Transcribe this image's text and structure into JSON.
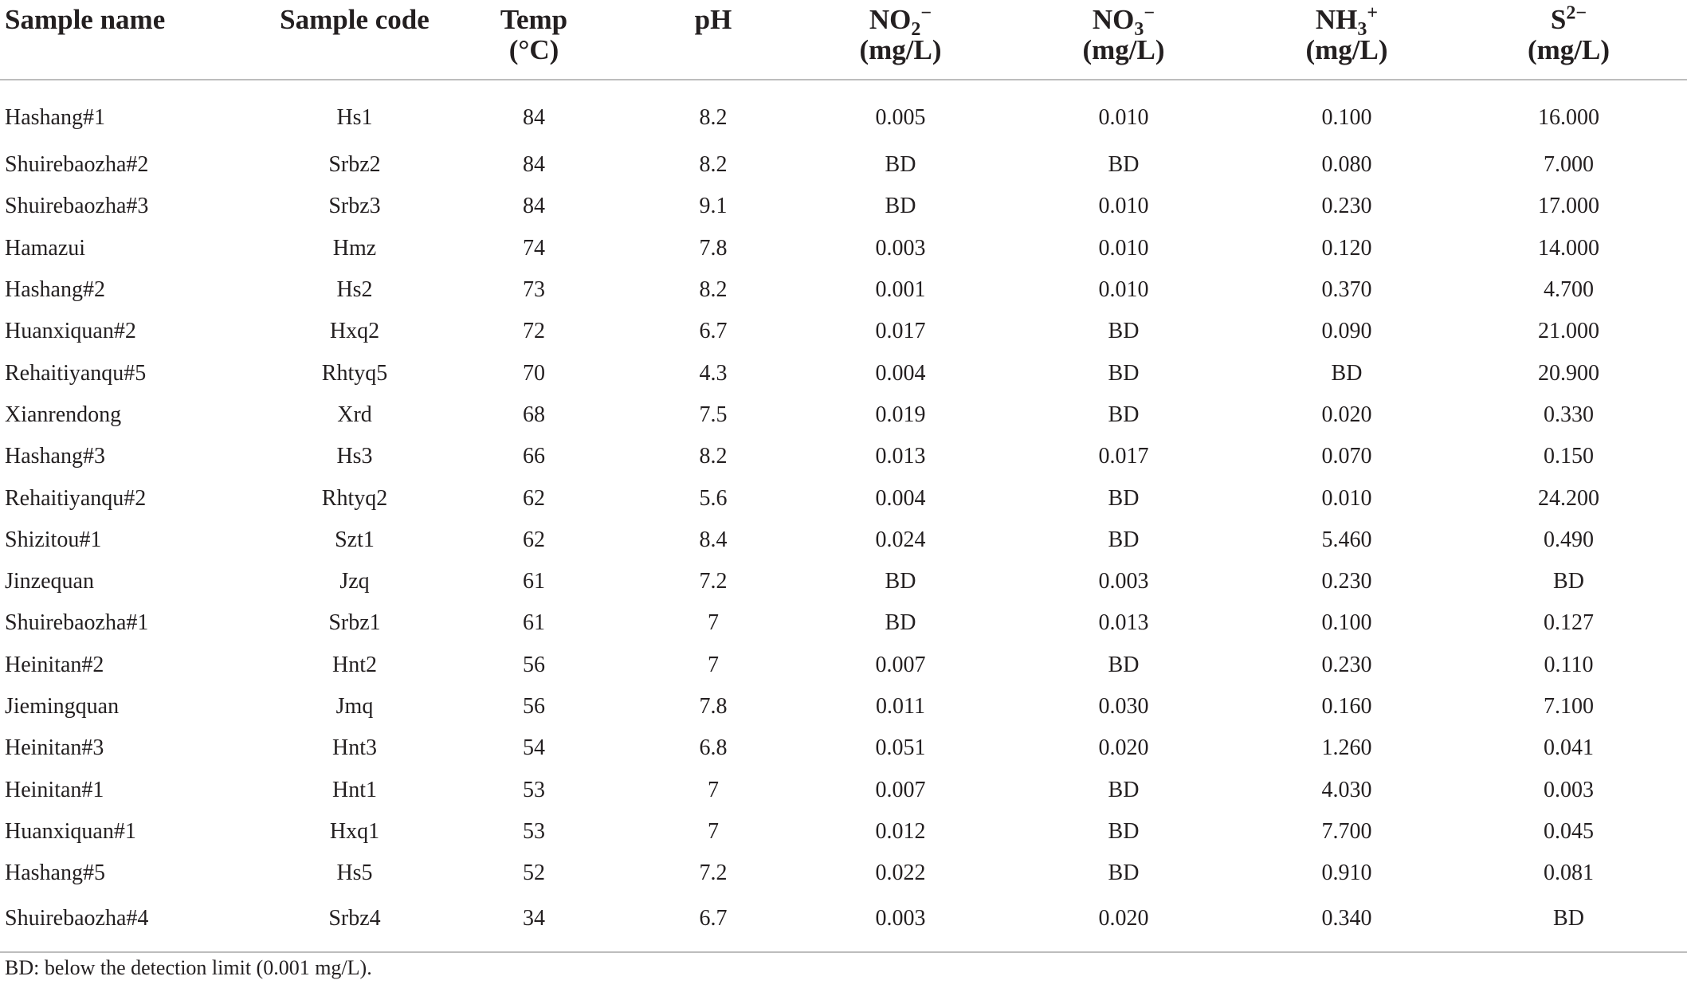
{
  "headers": {
    "sample_name": "Sample name",
    "sample_code": "Sample code",
    "temp": "Temp",
    "temp_unit": "(°C)",
    "ph": "pH",
    "no2_base": "NO",
    "no2_sub": "2",
    "no2_sup": "−",
    "no3_base": "NO",
    "no3_sub": "3",
    "no3_sup": "−",
    "nh3_base": "NH",
    "nh3_sub": "3",
    "nh3_sup": "+",
    "s_base": "S",
    "s_sup": "2−",
    "unit_mgl": "(mg/L)"
  },
  "rows": [
    [
      "Hashang#1",
      "Hs1",
      "84",
      "8.2",
      "0.005",
      "0.010",
      "0.100",
      "16.000"
    ],
    [
      "Shuirebaozha#2",
      "Srbz2",
      "84",
      "8.2",
      "BD",
      "BD",
      "0.080",
      "7.000"
    ],
    [
      "Shuirebaozha#3",
      "Srbz3",
      "84",
      "9.1",
      "BD",
      "0.010",
      "0.230",
      "17.000"
    ],
    [
      "Hamazui",
      "Hmz",
      "74",
      "7.8",
      "0.003",
      "0.010",
      "0.120",
      "14.000"
    ],
    [
      "Hashang#2",
      "Hs2",
      "73",
      "8.2",
      "0.001",
      "0.010",
      "0.370",
      "4.700"
    ],
    [
      "Huanxiquan#2",
      "Hxq2",
      "72",
      "6.7",
      "0.017",
      "BD",
      "0.090",
      "21.000"
    ],
    [
      "Rehaitiyanqu#5",
      "Rhtyq5",
      "70",
      "4.3",
      "0.004",
      "BD",
      "BD",
      "20.900"
    ],
    [
      "Xianrendong",
      "Xrd",
      "68",
      "7.5",
      "0.019",
      "BD",
      "0.020",
      "0.330"
    ],
    [
      "Hashang#3",
      "Hs3",
      "66",
      "8.2",
      "0.013",
      "0.017",
      "0.070",
      "0.150"
    ],
    [
      "Rehaitiyanqu#2",
      "Rhtyq2",
      "62",
      "5.6",
      "0.004",
      "BD",
      "0.010",
      "24.200"
    ],
    [
      "Shizitou#1",
      "Szt1",
      "62",
      "8.4",
      "0.024",
      "BD",
      "5.460",
      "0.490"
    ],
    [
      "Jinzequan",
      "Jzq",
      "61",
      "7.2",
      "BD",
      "0.003",
      "0.230",
      "BD"
    ],
    [
      "Shuirebaozha#1",
      "Srbz1",
      "61",
      "7",
      "BD",
      "0.013",
      "0.100",
      "0.127"
    ],
    [
      "Heinitan#2",
      "Hnt2",
      "56",
      "7",
      "0.007",
      "BD",
      "0.230",
      "0.110"
    ],
    [
      "Jiemingquan",
      "Jmq",
      "56",
      "7.8",
      "0.011",
      "0.030",
      "0.160",
      "7.100"
    ],
    [
      "Heinitan#3",
      "Hnt3",
      "54",
      "6.8",
      "0.051",
      "0.020",
      "1.260",
      "0.041"
    ],
    [
      "Heinitan#1",
      "Hnt1",
      "53",
      "7",
      "0.007",
      "BD",
      "4.030",
      "0.003"
    ],
    [
      "Huanxiquan#1",
      "Hxq1",
      "53",
      "7",
      "0.012",
      "BD",
      "7.700",
      "0.045"
    ],
    [
      "Hashang#5",
      "Hs5",
      "52",
      "7.2",
      "0.022",
      "BD",
      "0.910",
      "0.081"
    ],
    [
      "Shuirebaozha#4",
      "Srbz4",
      "34",
      "6.7",
      "0.003",
      "0.020",
      "0.340",
      "BD"
    ]
  ],
  "footnote": "BD: below the detection limit (0.001 mg/L)."
}
